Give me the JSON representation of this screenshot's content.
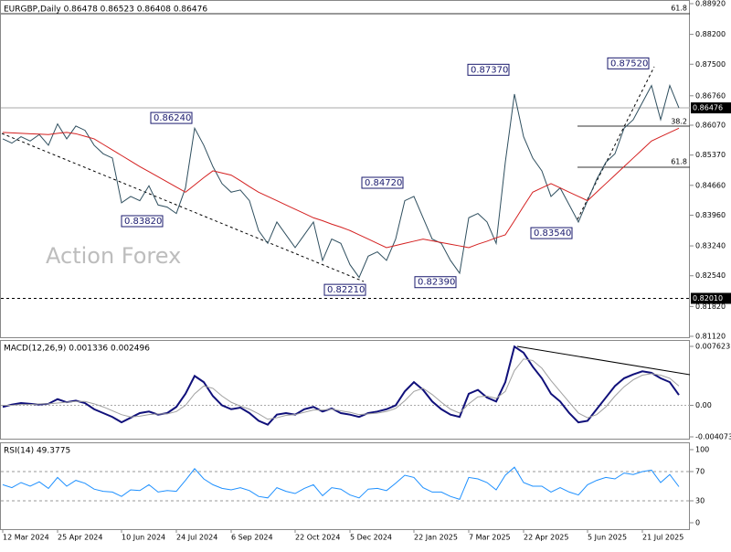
{
  "chart_data": [
    {
      "type": "line",
      "title": "EURGBP,Daily  0.86478 0.86523 0.86408 0.86476",
      "watermark": "Action Forex",
      "categories": [
        "12 Mar 2024",
        null,
        null,
        null,
        null,
        null,
        "25 Apr 2024",
        null,
        null,
        null,
        null,
        null,
        null,
        "10 Jun 2024",
        null,
        null,
        null,
        null,
        null,
        "24 Jul 2024",
        null,
        null,
        null,
        null,
        null,
        "6 Sep 2024",
        null,
        null,
        null,
        null,
        null,
        null,
        "22 Oct 2024",
        null,
        null,
        null,
        null,
        null,
        "5 Dec 2024",
        null,
        null,
        null,
        null,
        null,
        null,
        "22 Jan 2025",
        null,
        null,
        null,
        null,
        null,
        "7 Mar 2025",
        null,
        null,
        null,
        null,
        null,
        "22 Apr 2025",
        null,
        null,
        null,
        null,
        null,
        null,
        "5 Jun 2025",
        null,
        null,
        null,
        null,
        null,
        "21 Jul 2025",
        null,
        null,
        null,
        null
      ],
      "series": [
        {
          "name": "EURGBP",
          "color": "#2f4f5f",
          "values": [
            0.8575,
            0.8565,
            0.858,
            0.857,
            0.8585,
            0.856,
            0.861,
            0.8575,
            0.8605,
            0.8595,
            0.856,
            0.854,
            0.853,
            0.8425,
            0.844,
            0.843,
            0.8465,
            0.842,
            0.8415,
            0.84,
            0.846,
            0.86,
            0.856,
            0.851,
            0.847,
            0.845,
            0.8455,
            0.843,
            0.836,
            0.833,
            0.838,
            0.835,
            0.832,
            0.835,
            0.838,
            0.829,
            0.834,
            0.833,
            0.828,
            0.825,
            0.83,
            0.831,
            0.829,
            0.834,
            0.843,
            0.844,
            0.839,
            0.834,
            0.833,
            0.829,
            0.826,
            0.839,
            0.84,
            0.838,
            0.833,
            0.852,
            0.868,
            0.858,
            0.853,
            0.85,
            0.844,
            0.846,
            0.842,
            0.838,
            0.843,
            0.848,
            0.852,
            0.854,
            0.86,
            0.862,
            0.866,
            0.87,
            0.862,
            0.87,
            0.86476
          ]
        },
        {
          "name": "MA",
          "color": "#d42020",
          "values": [
            0.859,
            0.8589,
            0.8588,
            0.8587,
            0.8586,
            0.8585,
            0.8588,
            0.859,
            0.8587,
            0.8581,
            0.8575,
            0.8562,
            0.8549,
            0.8536,
            0.8523,
            0.851,
            0.8498,
            0.8486,
            0.8474,
            0.8462,
            0.845,
            0.8467,
            0.8484,
            0.85,
            0.8495,
            0.849,
            0.8477,
            0.8463,
            0.845,
            0.844,
            0.843,
            0.842,
            0.841,
            0.84,
            0.839,
            0.8383,
            0.8375,
            0.8368,
            0.836,
            0.835,
            0.834,
            0.833,
            0.832,
            0.8325,
            0.833,
            0.8335,
            0.834,
            0.8336,
            0.8332,
            0.8328,
            0.8324,
            0.832,
            0.8328,
            0.8335,
            0.8343,
            0.835,
            0.8383,
            0.8417,
            0.845,
            0.846,
            0.847,
            0.846,
            0.845,
            0.844,
            0.843,
            0.845,
            0.847,
            0.849,
            0.851,
            0.853,
            0.855,
            0.857,
            0.858,
            0.859,
            0.86
          ]
        }
      ],
      "ylim": [
        0.8112,
        0.8892
      ],
      "yticks": [
        {
          "value": 0.8892,
          "label": "0.88920"
        },
        {
          "value": 0.882,
          "label": "0.88200"
        },
        {
          "value": 0.875,
          "label": "0.87500"
        },
        {
          "value": 0.8676,
          "label": "0.86760"
        },
        {
          "value": 0.8607,
          "label": "0.86070"
        },
        {
          "value": 0.8537,
          "label": "0.85370"
        },
        {
          "value": 0.8466,
          "label": "0.84660"
        },
        {
          "value": 0.8396,
          "label": "0.83960"
        },
        {
          "value": 0.8324,
          "label": "0.83240"
        },
        {
          "value": 0.8254,
          "label": "0.82540"
        },
        {
          "value": 0.8182,
          "label": "0.81820"
        },
        {
          "value": 0.8112,
          "label": "0.81120"
        }
      ],
      "annotations": [
        {
          "value": 0.8624,
          "label": "0.86240"
        },
        {
          "value": 0.8382,
          "label": "0.83820"
        },
        {
          "value": 0.8472,
          "label": "0.84720"
        },
        {
          "value": 0.8221,
          "label": "0.82210"
        },
        {
          "value": 0.8737,
          "label": "0.87370"
        },
        {
          "value": 0.8239,
          "label": "0.82390"
        },
        {
          "value": 0.8752,
          "label": "0.87520"
        },
        {
          "value": 0.8354,
          "label": "0.83540"
        }
      ],
      "last_price": {
        "value": 0.86476,
        "label": "0.86476"
      },
      "support": {
        "value": 0.8201,
        "label": "0.82010"
      },
      "fib_labels": [
        "61.8",
        "38.2",
        "61.8"
      ]
    },
    {
      "type": "line",
      "title": "MACD(12,26,9) 0.001336 0.002496",
      "series": [
        {
          "name": "MACD",
          "color": "#10107a",
          "values": [
            -0.0002,
            0.0001,
            0.0003,
            0.0002,
            0.0001,
            0.0002,
            0.0008,
            0.0004,
            0.0006,
            0.0003,
            -0.0005,
            -0.001,
            -0.0015,
            -0.0022,
            -0.0016,
            -0.001,
            -0.0008,
            -0.0012,
            -0.001,
            -0.0002,
            0.0015,
            0.0038,
            0.003,
            0.0012,
            0.0,
            -0.0005,
            -0.0003,
            -0.001,
            -0.002,
            -0.0025,
            -0.0012,
            -0.001,
            -0.0012,
            -0.0005,
            -0.0002,
            -0.0008,
            -0.0004,
            -0.001,
            -0.0012,
            -0.0015,
            -0.001,
            -0.0008,
            -0.0005,
            0.0,
            0.0018,
            0.003,
            0.002,
            0.0005,
            -0.0005,
            -0.0012,
            -0.0015,
            0.0015,
            0.002,
            0.001,
            0.0005,
            0.003,
            0.0076,
            0.0068,
            0.005,
            0.0035,
            0.0015,
            0.0005,
            -0.001,
            -0.0022,
            -0.002,
            -0.0005,
            0.001,
            0.0025,
            0.0035,
            0.004,
            0.0044,
            0.0042,
            0.0035,
            0.003,
            0.001336
          ]
        },
        {
          "name": "Signal",
          "color": "#a0a0a0",
          "values": [
            0.0,
            0.0,
            0.0001,
            0.0001,
            0.0002,
            0.0002,
            0.0003,
            0.0004,
            0.0005,
            0.0005,
            0.0002,
            -0.0002,
            -0.0007,
            -0.0012,
            -0.0015,
            -0.0014,
            -0.0012,
            -0.0011,
            -0.0011,
            -0.0008,
            0.0,
            0.0015,
            0.0025,
            0.0022,
            0.0012,
            0.0004,
            -0.0001,
            -0.0005,
            -0.0011,
            -0.0018,
            -0.0016,
            -0.0013,
            -0.0012,
            -0.0009,
            -0.0006,
            -0.0006,
            -0.0005,
            -0.0007,
            -0.0009,
            -0.0012,
            -0.0011,
            -0.001,
            -0.0008,
            -0.0004,
            0.0006,
            0.0018,
            0.0022,
            0.0014,
            0.0004,
            -0.0005,
            -0.001,
            0.0002,
            0.0011,
            0.0012,
            0.0009,
            0.0018,
            0.0045,
            0.006,
            0.0058,
            0.0048,
            0.0032,
            0.0018,
            0.0004,
            -0.001,
            -0.0016,
            -0.0012,
            -0.0002,
            0.0012,
            0.0024,
            0.0033,
            0.0039,
            0.0041,
            0.0039,
            0.0035,
            0.002496
          ]
        }
      ],
      "ylim": [
        -0.004073,
        0.007623
      ],
      "yticks": [
        0.007623,
        {
          "value": 0,
          "label": "0.00"
        },
        -0.004073
      ]
    },
    {
      "type": "line",
      "title": "RSI(14) 49.3775",
      "series": [
        {
          "name": "RSI",
          "color": "#1e90ff",
          "values": [
            52,
            48,
            55,
            50,
            56,
            47,
            62,
            50,
            58,
            54,
            46,
            43,
            42,
            36,
            45,
            44,
            52,
            42,
            44,
            43,
            58,
            74,
            60,
            52,
            47,
            45,
            48,
            44,
            36,
            34,
            48,
            43,
            40,
            47,
            52,
            37,
            48,
            46,
            38,
            34,
            46,
            47,
            44,
            54,
            65,
            62,
            48,
            42,
            42,
            36,
            32,
            62,
            60,
            55,
            45,
            65,
            76,
            55,
            50,
            50,
            42,
            48,
            42,
            38,
            52,
            58,
            62,
            60,
            68,
            66,
            70,
            72,
            55,
            66,
            49.3775
          ]
        }
      ],
      "ylim": [
        0,
        100
      ],
      "yticks": [
        100,
        70,
        30,
        0
      ]
    }
  ]
}
